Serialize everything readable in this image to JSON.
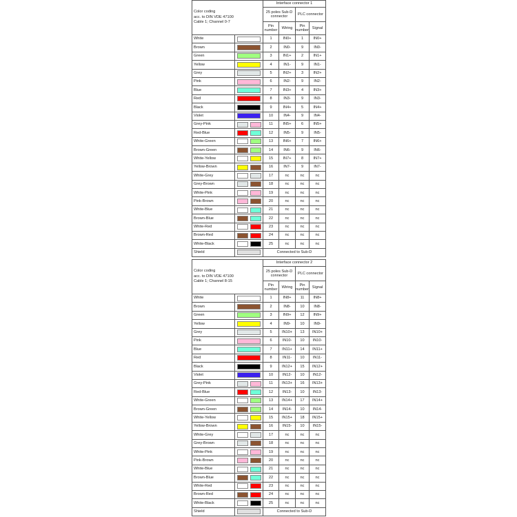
{
  "colors": {
    "White": "#ffffff",
    "Brown": "#8b5330",
    "Green": "#a0ff80",
    "Yellow": "#ffff00",
    "Grey": "#e2e8e8",
    "Pink": "#ffb8d8",
    "Blue": "#70ffd8",
    "Red": "#ff0000",
    "Black": "#000000",
    "Violet": "#3b20f0",
    "Shield": "#e0e0e0"
  },
  "tables": [
    {
      "title_lines": [
        "Color coding",
        "acc. to DIN VDE 47100",
        "Cable 1; Channel 0-7"
      ],
      "connector": "Interface connector 1",
      "subd": "25 poles Sub-D connector",
      "plc": "PLC connector",
      "col_pin": "Pin number",
      "col_wiring": "Wiring",
      "col_pin2": "Pin number",
      "col_signal": "Signal",
      "rows": [
        {
          "name": "White",
          "c": [
            "White"
          ],
          "pin": "1",
          "wiring": "IN0+",
          "pin2": "1",
          "signal": "IN0+"
        },
        {
          "name": "Brown",
          "c": [
            "Brown"
          ],
          "pin": "2",
          "wiring": "IN0-",
          "pin2": "9",
          "signal": "IN0-"
        },
        {
          "name": "Green",
          "c": [
            "Green"
          ],
          "pin": "3",
          "wiring": "IN1+",
          "pin2": "2",
          "signal": "IN1+"
        },
        {
          "name": "Yellow",
          "c": [
            "Yellow"
          ],
          "pin": "4",
          "wiring": "IN1-",
          "pin2": "9",
          "signal": "IN1-"
        },
        {
          "name": "Grey",
          "c": [
            "Grey"
          ],
          "pin": "5",
          "wiring": "IN2+",
          "pin2": "3",
          "signal": "IN2+"
        },
        {
          "name": "Pink",
          "c": [
            "Pink"
          ],
          "pin": "6",
          "wiring": "IN2-",
          "pin2": "9",
          "signal": "IN2-"
        },
        {
          "name": "Blue",
          "c": [
            "Blue"
          ],
          "pin": "7",
          "wiring": "IN3+",
          "pin2": "4",
          "signal": "IN3+"
        },
        {
          "name": "Red",
          "c": [
            "Red"
          ],
          "pin": "8",
          "wiring": "IN3-",
          "pin2": "9",
          "signal": "IN3-"
        },
        {
          "name": "Black",
          "c": [
            "Black"
          ],
          "pin": "9",
          "wiring": "IN4+",
          "pin2": "5",
          "signal": "IN4+"
        },
        {
          "name": "Violet",
          "c": [
            "Violet"
          ],
          "pin": "10",
          "wiring": "IN4-",
          "pin2": "9",
          "signal": "IN4-"
        },
        {
          "name": "Grey-Pink",
          "c": [
            "Grey",
            "Pink"
          ],
          "pin": "11",
          "wiring": "IN5+",
          "pin2": "6",
          "signal": "IN5+"
        },
        {
          "name": "Red-Blue",
          "c": [
            "Red",
            "Blue"
          ],
          "pin": "12",
          "wiring": "IN5-",
          "pin2": "9",
          "signal": "IN5-"
        },
        {
          "name": "White-Green",
          "c": [
            "White",
            "Green"
          ],
          "pin": "13",
          "wiring": "IN6+",
          "pin2": "7",
          "signal": "IN6+"
        },
        {
          "name": "Brown-Green",
          "c": [
            "Brown",
            "Green"
          ],
          "pin": "14",
          "wiring": "IN6-",
          "pin2": "9",
          "signal": "IN6-"
        },
        {
          "name": "White-Yellow",
          "c": [
            "White",
            "Yellow"
          ],
          "pin": "15",
          "wiring": "IN7+",
          "pin2": "8",
          "signal": "IN7+"
        },
        {
          "name": "Yellow-Brown",
          "c": [
            "Yellow",
            "Brown"
          ],
          "pin": "16",
          "wiring": "IN7-",
          "pin2": "9",
          "signal": "IN7-"
        },
        {
          "name": "White-Grey",
          "c": [
            "White",
            "Grey"
          ],
          "pin": "17",
          "wiring": "nc",
          "pin2": "nc",
          "signal": "nc"
        },
        {
          "name": "Grey-Brown",
          "c": [
            "Grey",
            "Brown"
          ],
          "pin": "18",
          "wiring": "nc",
          "pin2": "nc",
          "signal": "nc"
        },
        {
          "name": "White-Pink",
          "c": [
            "White",
            "Pink"
          ],
          "pin": "19",
          "wiring": "nc",
          "pin2": "nc",
          "signal": "nc"
        },
        {
          "name": "Pink-Brown",
          "c": [
            "Pink",
            "Brown"
          ],
          "pin": "20",
          "wiring": "nc",
          "pin2": "nc",
          "signal": "nc"
        },
        {
          "name": "White-Blue",
          "c": [
            "White",
            "Blue"
          ],
          "pin": "21",
          "wiring": "nc",
          "pin2": "nc",
          "signal": "nc"
        },
        {
          "name": "Brown-Blue",
          "c": [
            "Brown",
            "Blue"
          ],
          "pin": "22",
          "wiring": "nc",
          "pin2": "nc",
          "signal": "nc"
        },
        {
          "name": "White-Red",
          "c": [
            "White",
            "Red"
          ],
          "pin": "23",
          "wiring": "nc",
          "pin2": "nc",
          "signal": "nc"
        },
        {
          "name": "Brown-Red",
          "c": [
            "Brown",
            "Red"
          ],
          "pin": "24",
          "wiring": "nc",
          "pin2": "nc",
          "signal": "nc"
        },
        {
          "name": "White-Black",
          "c": [
            "White",
            "Black"
          ],
          "pin": "25",
          "wiring": "nc",
          "pin2": "nc",
          "signal": "nc"
        }
      ],
      "shield": {
        "name": "Shield",
        "note": "Connected to Sub-D"
      }
    },
    {
      "title_lines": [
        "Color coding",
        "acc. to DIN VDE 47100",
        "Cable 1; Channel 8-15"
      ],
      "connector": "Interface connector 2",
      "subd": "25 poles Sub-D connector",
      "plc": "PLC connector",
      "col_pin": "Pin number",
      "col_wiring": "Wiring",
      "col_pin2": "Pin number",
      "col_signal": "Signal",
      "rows": [
        {
          "name": "White",
          "c": [
            "White"
          ],
          "pin": "1",
          "wiring": "IN8+",
          "pin2": "11",
          "signal": "IN8+"
        },
        {
          "name": "Brown",
          "c": [
            "Brown"
          ],
          "pin": "2",
          "wiring": "IN8-",
          "pin2": "10",
          "signal": "IN8-"
        },
        {
          "name": "Green",
          "c": [
            "Green"
          ],
          "pin": "3",
          "wiring": "IN9+",
          "pin2": "12",
          "signal": "IN9+"
        },
        {
          "name": "Yellow",
          "c": [
            "Yellow"
          ],
          "pin": "4",
          "wiring": "IN9-",
          "pin2": "10",
          "signal": "IN9-"
        },
        {
          "name": "Grey",
          "c": [
            "Grey"
          ],
          "pin": "5",
          "wiring": "IN10+",
          "pin2": "13",
          "signal": "IN10+"
        },
        {
          "name": "Pink",
          "c": [
            "Pink"
          ],
          "pin": "6",
          "wiring": "IN10-",
          "pin2": "10",
          "signal": "IN10-"
        },
        {
          "name": "Blue",
          "c": [
            "Blue"
          ],
          "pin": "7",
          "wiring": "IN11+",
          "pin2": "14",
          "signal": "IN11+"
        },
        {
          "name": "Red",
          "c": [
            "Red"
          ],
          "pin": "8",
          "wiring": "IN11-",
          "pin2": "10",
          "signal": "IN11-"
        },
        {
          "name": "Black",
          "c": [
            "Black"
          ],
          "pin": "9",
          "wiring": "IN12+",
          "pin2": "15",
          "signal": "IN12+"
        },
        {
          "name": "Violet",
          "c": [
            "Violet"
          ],
          "pin": "10",
          "wiring": "IN12-",
          "pin2": "10",
          "signal": "IN12-"
        },
        {
          "name": "Grey-Pink",
          "c": [
            "Grey",
            "Pink"
          ],
          "pin": "11",
          "wiring": "IN13+",
          "pin2": "16",
          "signal": "IN13+"
        },
        {
          "name": "Red-Blue",
          "c": [
            "Red",
            "Blue"
          ],
          "pin": "12",
          "wiring": "IN13-",
          "pin2": "10",
          "signal": "IN13-"
        },
        {
          "name": "White-Green",
          "c": [
            "White",
            "Green"
          ],
          "pin": "13",
          "wiring": "IN14+",
          "pin2": "17",
          "signal": "IN14+"
        },
        {
          "name": "Brown-Green",
          "c": [
            "Brown",
            "Green"
          ],
          "pin": "14",
          "wiring": "IN14-",
          "pin2": "10",
          "signal": "IN14-"
        },
        {
          "name": "White-Yellow",
          "c": [
            "White",
            "Yellow"
          ],
          "pin": "15",
          "wiring": "IN15+",
          "pin2": "18",
          "signal": "IN15+"
        },
        {
          "name": "Yellow-Brown",
          "c": [
            "Yellow",
            "Brown"
          ],
          "pin": "16",
          "wiring": "IN15-",
          "pin2": "10",
          "signal": "IN15-"
        },
        {
          "name": "White-Grey",
          "c": [
            "White",
            "Grey"
          ],
          "pin": "17",
          "wiring": "nc",
          "pin2": "nc",
          "signal": "nc"
        },
        {
          "name": "Grey-Brown",
          "c": [
            "Grey",
            "Brown"
          ],
          "pin": "18",
          "wiring": "nc",
          "pin2": "nc",
          "signal": "nc"
        },
        {
          "name": "White-Pink",
          "c": [
            "White",
            "Pink"
          ],
          "pin": "19",
          "wiring": "nc",
          "pin2": "nc",
          "signal": "nc"
        },
        {
          "name": "Pink-Brown",
          "c": [
            "Pink",
            "Brown"
          ],
          "pin": "20",
          "wiring": "nc",
          "pin2": "nc",
          "signal": "nc"
        },
        {
          "name": "White-Blue",
          "c": [
            "White",
            "Blue"
          ],
          "pin": "21",
          "wiring": "nc",
          "pin2": "nc",
          "signal": "nc"
        },
        {
          "name": "Brown-Blue",
          "c": [
            "Brown",
            "Blue"
          ],
          "pin": "22",
          "wiring": "nc",
          "pin2": "nc",
          "signal": "nc"
        },
        {
          "name": "White-Red",
          "c": [
            "White",
            "Red"
          ],
          "pin": "23",
          "wiring": "nc",
          "pin2": "nc",
          "signal": "nc"
        },
        {
          "name": "Brown-Red",
          "c": [
            "Brown",
            "Red"
          ],
          "pin": "24",
          "wiring": "nc",
          "pin2": "nc",
          "signal": "nc"
        },
        {
          "name": "White-Black",
          "c": [
            "White",
            "Black"
          ],
          "pin": "25",
          "wiring": "nc",
          "pin2": "nc",
          "signal": "nc"
        }
      ],
      "shield": {
        "name": "Shield",
        "note": "Connected to Sub-D"
      }
    }
  ]
}
